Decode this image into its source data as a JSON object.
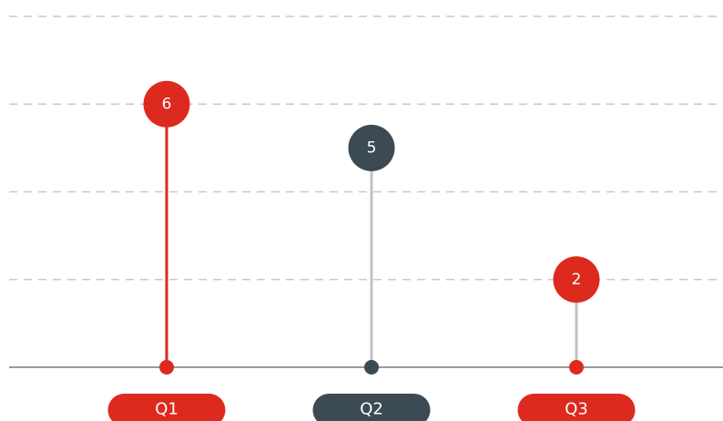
{
  "chart_data": {
    "type": "lollipop",
    "categories": [
      "Q1",
      "Q2",
      "Q3"
    ],
    "values": [
      6,
      5,
      2
    ],
    "colors": [
      "#dc2a1e",
      "#3c4a54",
      "#dc2a1e"
    ],
    "stem_colors": [
      "#dc2a1e",
      "#c2c2c6",
      "#c2c2c6"
    ],
    "ylim": [
      0,
      8
    ],
    "yticks": [
      0,
      2,
      4,
      6,
      8
    ],
    "grid": true
  }
}
